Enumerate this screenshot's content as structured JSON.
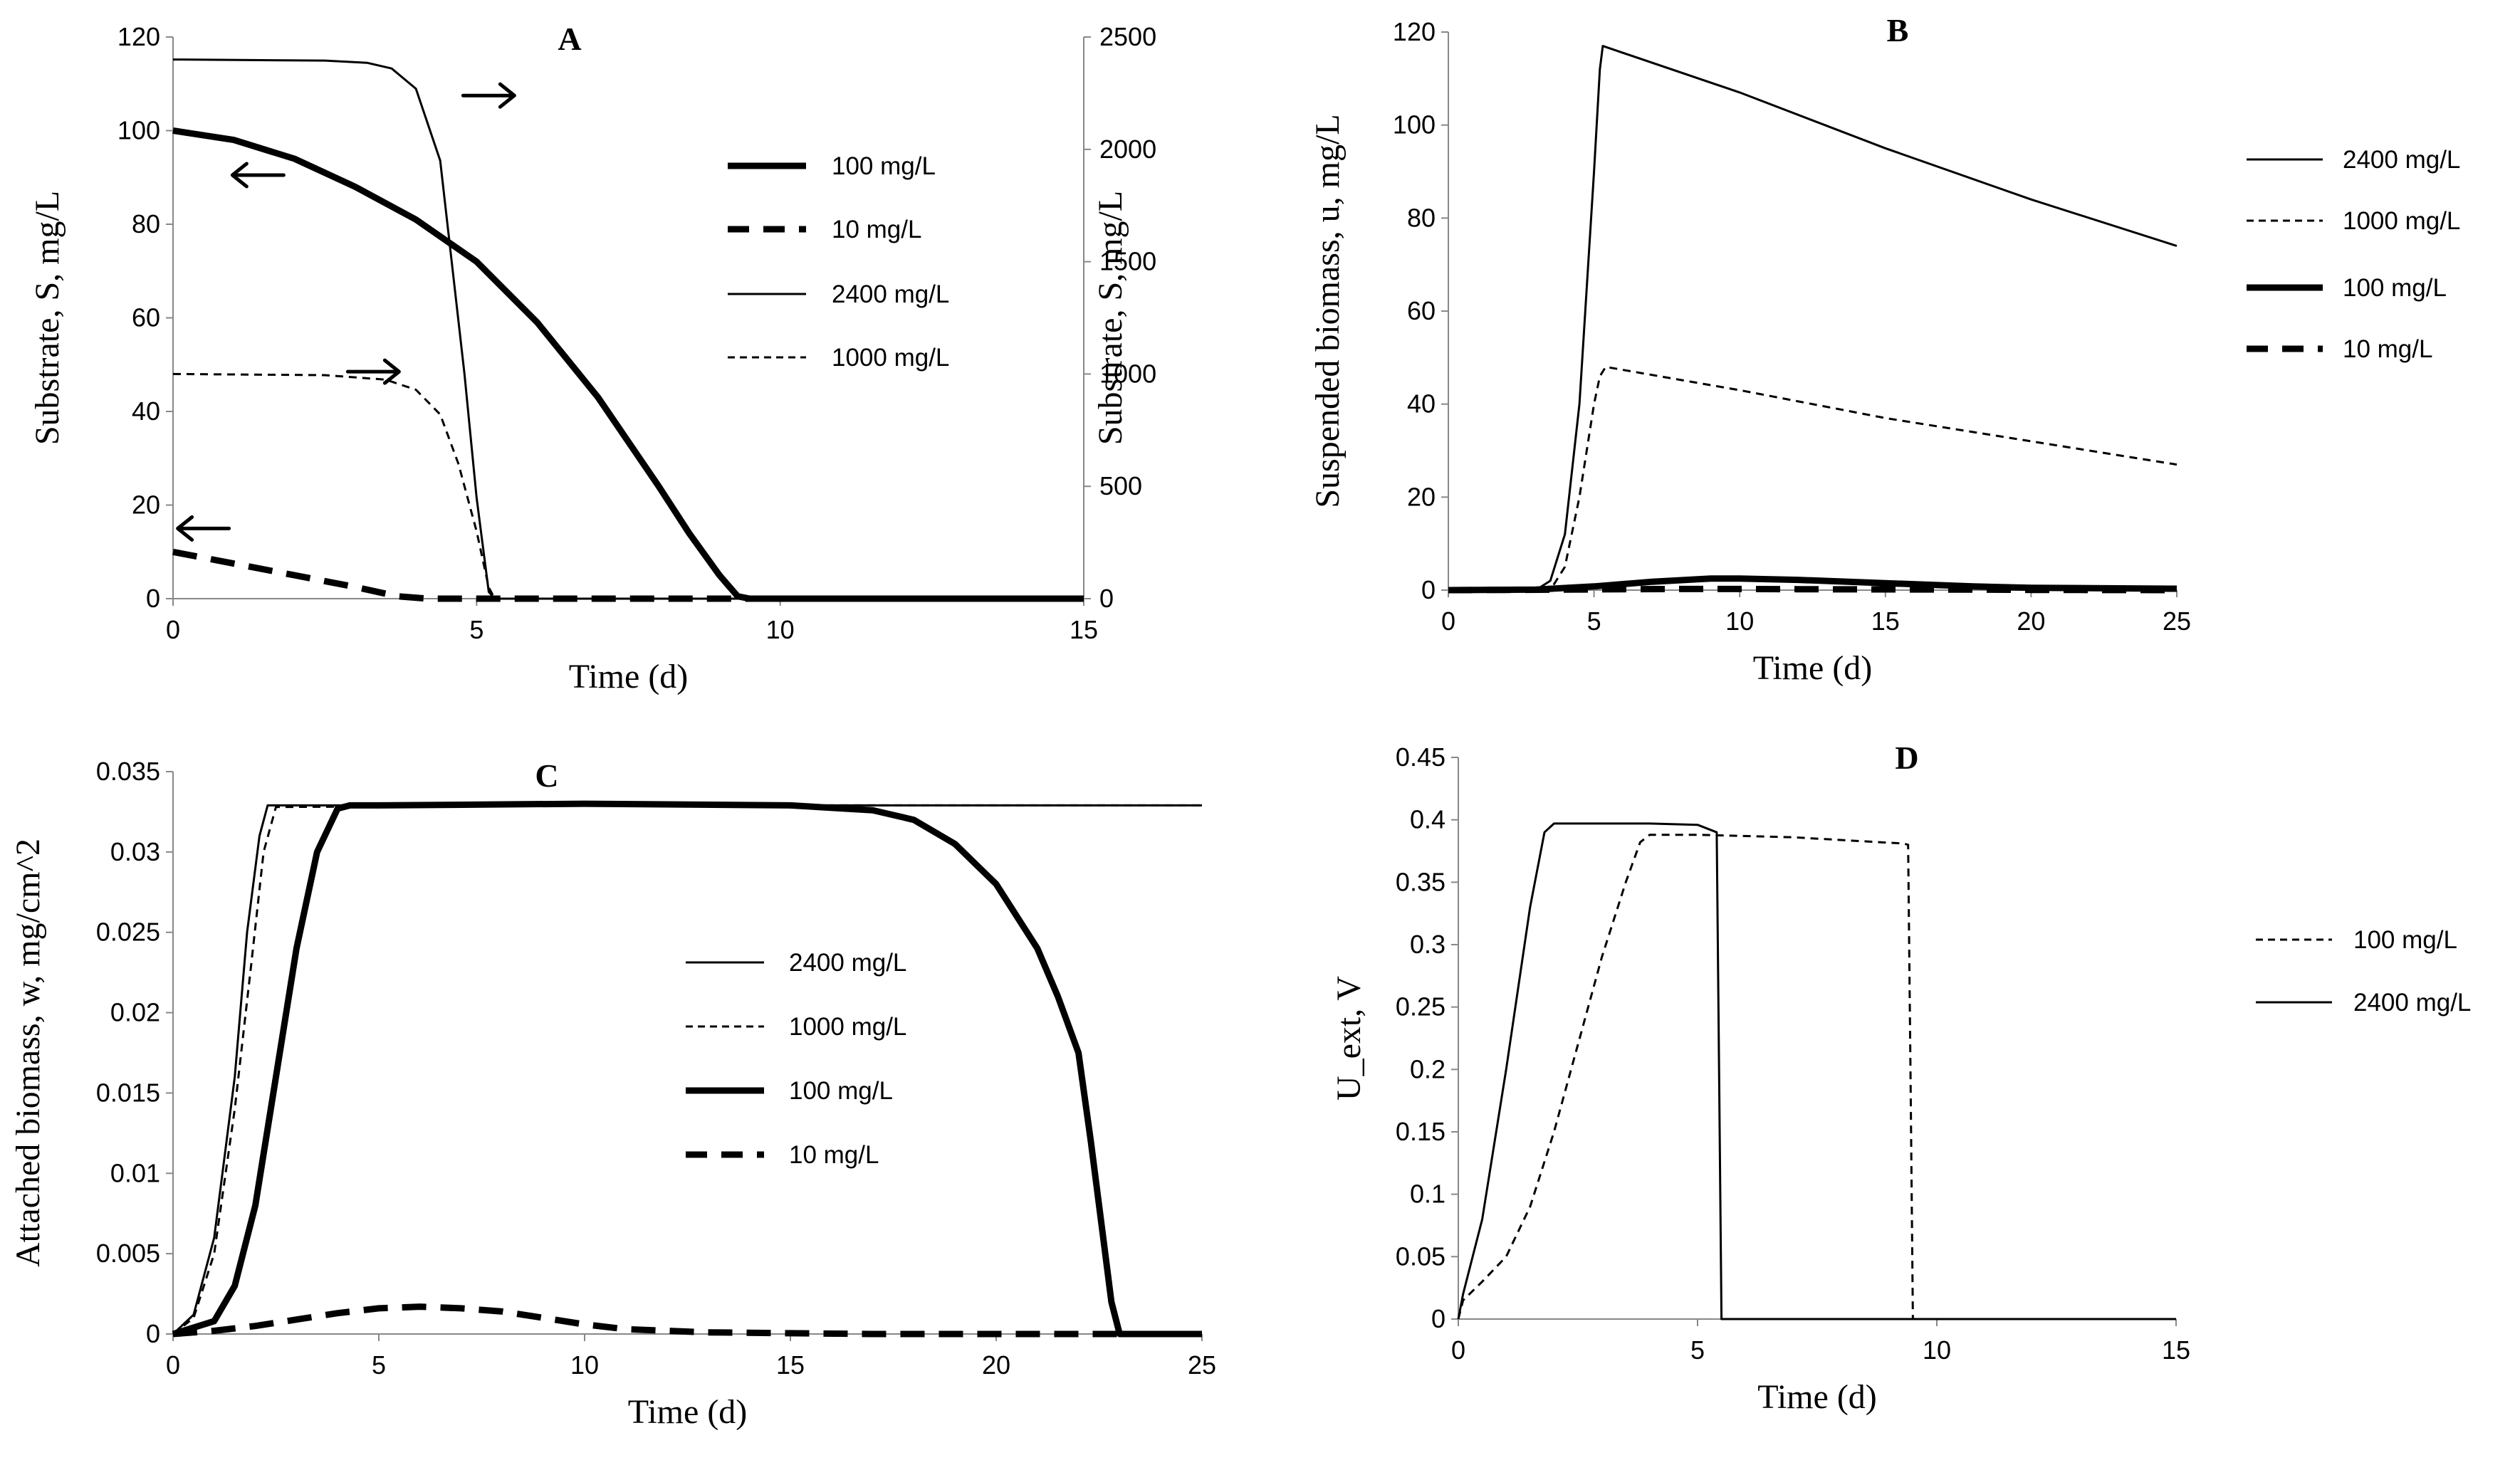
{
  "chart_data": [
    {
      "panel": "A",
      "type": "line",
      "title": "A",
      "xlabel": "Time (d)",
      "ylabel": "Substrate, S, mg/L",
      "y2label": "Substrate, S, mg/L",
      "xlim": [
        0,
        15
      ],
      "ylim": [
        0,
        120
      ],
      "y2lim": [
        0,
        2500
      ],
      "xticks": [
        0,
        5,
        10,
        15
      ],
      "yticks": [
        0,
        20,
        40,
        60,
        80,
        100,
        120
      ],
      "y2ticks": [
        0,
        500,
        1000,
        1500,
        2000,
        2500
      ],
      "legend_position": "upper-right",
      "series": [
        {
          "name": "100 mg/L",
          "style": "thick-solid",
          "axis": "left",
          "x": [
            0,
            1,
            2,
            3,
            4,
            5,
            6,
            7,
            8,
            8.5,
            9,
            9.3,
            9.5,
            15
          ],
          "y": [
            100,
            98,
            94,
            88,
            81,
            72,
            59,
            43,
            24,
            14,
            5,
            0.5,
            0,
            0
          ]
        },
        {
          "name": "10 mg/L",
          "style": "thick-dash",
          "axis": "left",
          "x": [
            0,
            1,
            2,
            3,
            3.7,
            4.2,
            15
          ],
          "y": [
            10,
            7.5,
            5,
            2.5,
            0.5,
            0,
            0
          ]
        },
        {
          "name": "2400 mg/L",
          "style": "thin-solid",
          "axis": "right",
          "x": [
            0,
            2.5,
            3.2,
            3.6,
            4.0,
            4.4,
            4.8,
            5.0,
            5.2,
            5.3,
            15
          ],
          "y": [
            2400,
            2395,
            2385,
            2360,
            2270,
            1950,
            1000,
            450,
            30,
            0,
            0
          ]
        },
        {
          "name": "1000 mg/L",
          "style": "thin-dash",
          "axis": "right",
          "x": [
            0,
            2.5,
            3.5,
            4.0,
            4.4,
            4.7,
            5.0,
            5.2,
            5.3,
            15
          ],
          "y": [
            1000,
            995,
            975,
            930,
            820,
            600,
            300,
            50,
            0,
            0
          ]
        }
      ],
      "annotations": [
        {
          "text": "→",
          "meaning": "2400 mg/L curve read on right axis",
          "x": 5.2,
          "y": 107.5
        },
        {
          "text": "←",
          "meaning": "100 mg/L curve read on left axis",
          "x": 1.4,
          "y": 90.5
        },
        {
          "text": "→",
          "meaning": "1000 mg/L curve read on right axis",
          "x": 3.3,
          "y": 48.5
        },
        {
          "text": "←",
          "meaning": "10 mg/L curve read on left axis",
          "x": 0.5,
          "y": 15
        }
      ]
    },
    {
      "panel": "B",
      "type": "line",
      "title": "B",
      "xlabel": "Time (d)",
      "ylabel": "Suspended biomass, u, mg/L",
      "xlim": [
        0,
        25
      ],
      "ylim": [
        0,
        120
      ],
      "xticks": [
        0,
        5,
        10,
        15,
        20,
        25
      ],
      "yticks": [
        0,
        20,
        40,
        60,
        80,
        100,
        120
      ],
      "legend_position": "right",
      "series": [
        {
          "name": "2400 mg/L",
          "style": "thin-solid",
          "x": [
            0,
            3,
            3.5,
            4,
            4.5,
            5,
            5.2,
            5.3,
            10,
            15,
            20,
            25
          ],
          "y": [
            0,
            0,
            2,
            12,
            40,
            90,
            112,
            117,
            107,
            95,
            84,
            74
          ]
        },
        {
          "name": "1000 mg/L",
          "style": "thin-dash",
          "x": [
            0,
            3.5,
            4,
            4.5,
            5,
            5.2,
            5.4,
            10,
            15,
            20,
            25
          ],
          "y": [
            0,
            0,
            5,
            20,
            40,
            46,
            48,
            43,
            37,
            32,
            27
          ]
        },
        {
          "name": "100 mg/L",
          "style": "thick-solid",
          "x": [
            0,
            3,
            5,
            7,
            9,
            10,
            12,
            15,
            18,
            20,
            25
          ],
          "y": [
            0,
            0.1,
            0.8,
            1.8,
            2.5,
            2.5,
            2.2,
            1.5,
            0.8,
            0.5,
            0.3
          ]
        },
        {
          "name": "10 mg/L",
          "style": "thick-dash",
          "x": [
            0,
            2,
            4,
            6,
            8,
            10,
            12,
            15,
            18,
            20,
            25
          ],
          "y": [
            0,
            0.05,
            0.1,
            0.2,
            0.25,
            0.25,
            0.2,
            0.15,
            0.1,
            0.05,
            0
          ]
        }
      ]
    },
    {
      "panel": "C",
      "type": "line",
      "title": "C",
      "xlabel": "Time (d)",
      "ylabel": "Attached biomass, w, mg/cm^2",
      "xlim": [
        0,
        25
      ],
      "ylim": [
        0,
        0.035
      ],
      "xticks": [
        0,
        5,
        10,
        15,
        20,
        25
      ],
      "yticks": [
        0,
        0.005,
        0.01,
        0.015,
        0.02,
        0.025,
        0.03,
        0.035
      ],
      "ytick_labels": [
        "0",
        "0.005",
        "0.01",
        "0.015",
        "0.02",
        "0.025",
        "0.03",
        "0.035"
      ],
      "legend_position": "center",
      "series": [
        {
          "name": "2400 mg/L",
          "style": "thin-solid",
          "x": [
            0,
            0.5,
            1.0,
            1.5,
            1.8,
            2.1,
            2.3,
            25
          ],
          "y": [
            0,
            0.0012,
            0.006,
            0.016,
            0.025,
            0.031,
            0.0329,
            0.0329
          ]
        },
        {
          "name": "1000 mg/L",
          "style": "thin-dash",
          "x": [
            0,
            0.5,
            1.0,
            1.5,
            1.9,
            2.2,
            2.5,
            10,
            25
          ],
          "y": [
            0,
            0.001,
            0.005,
            0.014,
            0.023,
            0.03,
            0.0328,
            0.0329,
            0.0329
          ]
        },
        {
          "name": "100 mg/L",
          "style": "thick-solid",
          "x": [
            0,
            1,
            1.5,
            2,
            2.5,
            3,
            3.5,
            4,
            4.3,
            5,
            10,
            15,
            17,
            18,
            19,
            20,
            21,
            21.5,
            22,
            22.3,
            22.6,
            22.8,
            23,
            25
          ],
          "y": [
            0,
            0.0008,
            0.003,
            0.008,
            0.016,
            0.024,
            0.03,
            0.0327,
            0.0329,
            0.0329,
            0.033,
            0.0329,
            0.0326,
            0.032,
            0.0305,
            0.028,
            0.024,
            0.021,
            0.0175,
            0.012,
            0.006,
            0.002,
            0,
            0
          ]
        },
        {
          "name": "10 mg/L",
          "style": "thick-dash",
          "x": [
            0,
            1,
            2,
            3,
            4,
            5,
            6,
            7,
            8,
            9,
            10,
            11,
            12,
            13,
            15,
            17,
            20,
            25
          ],
          "y": [
            0,
            0.0002,
            0.0005,
            0.0009,
            0.0013,
            0.0016,
            0.0017,
            0.0016,
            0.0014,
            0.001,
            0.0006,
            0.0003,
            0.0002,
            0.0001,
            5e-05,
            0,
            0,
            0
          ]
        }
      ]
    },
    {
      "panel": "D",
      "type": "line",
      "title": "D",
      "xlabel": "Time (d)",
      "ylabel": "U_ext, V",
      "xlim": [
        0,
        15
      ],
      "ylim": [
        0,
        0.45
      ],
      "xticks": [
        0,
        5,
        10,
        15
      ],
      "yticks": [
        0,
        0.05,
        0.1,
        0.15,
        0.2,
        0.25,
        0.3,
        0.35,
        0.4,
        0.45
      ],
      "ytick_labels": [
        "0",
        "0.05",
        "0.1",
        "0.15",
        "0.2",
        "0.25",
        "0.3",
        "0.35",
        "0.4",
        "0.45"
      ],
      "legend_position": "right",
      "series": [
        {
          "name": "100 mg/L",
          "style": "thin-dash",
          "x": [
            0,
            0.1,
            0.5,
            1,
            1.5,
            2,
            2.5,
            3,
            3.5,
            3.8,
            4,
            5,
            7,
            9.3,
            9.4,
            9.45,
            9.5,
            15
          ],
          "y": [
            0,
            0.015,
            0.03,
            0.05,
            0.09,
            0.15,
            0.22,
            0.29,
            0.35,
            0.382,
            0.388,
            0.388,
            0.386,
            0.381,
            0.38,
            0.2,
            0,
            0
          ]
        },
        {
          "name": "2400 mg/L",
          "style": "thin-solid",
          "x": [
            0,
            0.1,
            0.5,
            1.0,
            1.5,
            1.8,
            2.0,
            4.0,
            5.0,
            5.4,
            5.45,
            5.5,
            15
          ],
          "y": [
            0,
            0.02,
            0.08,
            0.2,
            0.33,
            0.39,
            0.397,
            0.397,
            0.396,
            0.39,
            0.2,
            0,
            0
          ]
        }
      ]
    }
  ]
}
